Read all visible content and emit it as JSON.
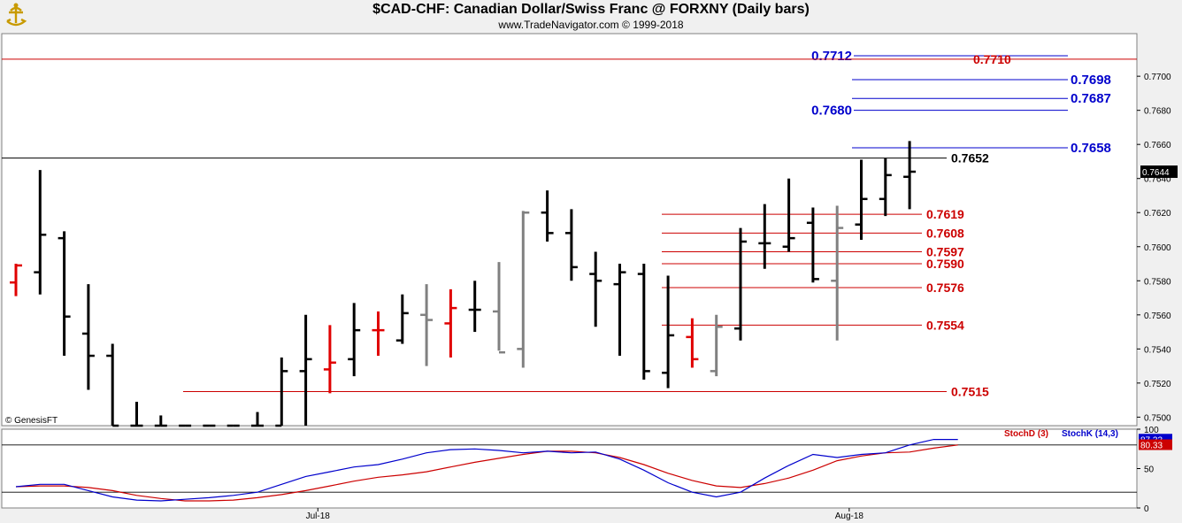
{
  "header": {
    "title": "$CAD-CHF:  Canadian Dollar/Swiss Franc @ FORXNY  (Daily bars)",
    "subtitle": "www.TradeNavigator.com © 1999-2018",
    "copyright": "© GenesisFT"
  },
  "colors": {
    "bg": "#ffffff",
    "frame": "#f0f0f0",
    "bull": "#000000",
    "bear": "#e00000",
    "neutral": "#808080",
    "blue_level": "#0000cc",
    "red_level": "#cc0000",
    "stoch_d": "#cc0000",
    "stoch_k": "#0000cc"
  },
  "chart_data": [
    {
      "type": "ohlc",
      "ylim": [
        0.7495,
        0.7725
      ],
      "y_ticks": [
        "0.7500",
        "0.7520",
        "0.7540",
        "0.7560",
        "0.7580",
        "0.7600",
        "0.7620",
        "0.7640",
        "0.7660",
        "0.7680",
        "0.7700"
      ],
      "x_labels": [
        {
          "label": "Jul-18",
          "bar": 12.5
        },
        {
          "label": "Aug-18",
          "bar": 34.5
        }
      ],
      "last_price": "0.7644",
      "bars": [
        {
          "o": 0.7579,
          "h": 0.759,
          "l": 0.7571,
          "c": 0.7589,
          "color": "bear"
        },
        {
          "o": 0.7585,
          "h": 0.7645,
          "l": 0.7572,
          "c": 0.7607,
          "color": "bull"
        },
        {
          "o": 0.7605,
          "h": 0.7609,
          "l": 0.7536,
          "c": 0.7559,
          "color": "bull"
        },
        {
          "o": 0.7549,
          "h": 0.7578,
          "l": 0.7516,
          "c": 0.7536,
          "color": "bull"
        },
        {
          "o": 0.7536,
          "h": 0.7543,
          "l": 0.7495,
          "c": 0.7495,
          "color": "bull"
        },
        {
          "o": 0.7495,
          "h": 0.7509,
          "l": 0.7495,
          "c": 0.7495,
          "color": "bull"
        },
        {
          "o": 0.7495,
          "h": 0.7501,
          "l": 0.7495,
          "c": 0.7495,
          "color": "bull"
        },
        {
          "o": 0.7495,
          "h": 0.7495,
          "l": 0.7495,
          "c": 0.7495,
          "color": "bull"
        },
        {
          "o": 0.7495,
          "h": 0.7495,
          "l": 0.7495,
          "c": 0.7495,
          "color": "bull"
        },
        {
          "o": 0.7495,
          "h": 0.7495,
          "l": 0.7495,
          "c": 0.7495,
          "color": "bull"
        },
        {
          "o": 0.7495,
          "h": 0.7503,
          "l": 0.7495,
          "c": 0.7495,
          "color": "bull"
        },
        {
          "o": 0.7495,
          "h": 0.7535,
          "l": 0.7495,
          "c": 0.7527,
          "color": "bull"
        },
        {
          "o": 0.7527,
          "h": 0.756,
          "l": 0.7495,
          "c": 0.7534,
          "color": "bull"
        },
        {
          "o": 0.7528,
          "h": 0.7554,
          "l": 0.7514,
          "c": 0.7532,
          "color": "bear"
        },
        {
          "o": 0.7534,
          "h": 0.7567,
          "l": 0.7524,
          "c": 0.7551,
          "color": "bull"
        },
        {
          "o": 0.7551,
          "h": 0.7562,
          "l": 0.7536,
          "c": 0.7551,
          "color": "bear"
        },
        {
          "o": 0.7545,
          "h": 0.7572,
          "l": 0.7543,
          "c": 0.7561,
          "color": "bull"
        },
        {
          "o": 0.756,
          "h": 0.7578,
          "l": 0.753,
          "c": 0.7557,
          "color": "neutral"
        },
        {
          "o": 0.7555,
          "h": 0.7575,
          "l": 0.7535,
          "c": 0.7564,
          "color": "bear"
        },
        {
          "o": 0.7563,
          "h": 0.758,
          "l": 0.755,
          "c": 0.7563,
          "color": "bull"
        },
        {
          "o": 0.7562,
          "h": 0.7591,
          "l": 0.7539,
          "c": 0.7538,
          "color": "neutral"
        },
        {
          "o": 0.754,
          "h": 0.7621,
          "l": 0.7529,
          "c": 0.762,
          "color": "neutral"
        },
        {
          "o": 0.762,
          "h": 0.7633,
          "l": 0.7603,
          "c": 0.7608,
          "color": "bull"
        },
        {
          "o": 0.7608,
          "h": 0.7622,
          "l": 0.758,
          "c": 0.7588,
          "color": "bull"
        },
        {
          "o": 0.7584,
          "h": 0.7597,
          "l": 0.7553,
          "c": 0.758,
          "color": "bull"
        },
        {
          "o": 0.7578,
          "h": 0.759,
          "l": 0.7536,
          "c": 0.7585,
          "color": "bull"
        },
        {
          "o": 0.7584,
          "h": 0.759,
          "l": 0.7522,
          "c": 0.7527,
          "color": "bull"
        },
        {
          "o": 0.7526,
          "h": 0.7583,
          "l": 0.7517,
          "c": 0.7548,
          "color": "bull"
        },
        {
          "o": 0.7547,
          "h": 0.7558,
          "l": 0.7529,
          "c": 0.7534,
          "color": "bear"
        },
        {
          "o": 0.7527,
          "h": 0.756,
          "l": 0.7524,
          "c": 0.7553,
          "color": "neutral"
        },
        {
          "o": 0.7552,
          "h": 0.7611,
          "l": 0.7545,
          "c": 0.7603,
          "color": "bull"
        },
        {
          "o": 0.7602,
          "h": 0.7625,
          "l": 0.7587,
          "c": 0.7602,
          "color": "bull"
        },
        {
          "o": 0.76,
          "h": 0.764,
          "l": 0.7597,
          "c": 0.7605,
          "color": "bull"
        },
        {
          "o": 0.7614,
          "h": 0.7623,
          "l": 0.7579,
          "c": 0.7581,
          "color": "bull"
        },
        {
          "o": 0.758,
          "h": 0.7624,
          "l": 0.7545,
          "c": 0.7611,
          "color": "neutral"
        },
        {
          "o": 0.7613,
          "h": 0.7651,
          "l": 0.7604,
          "c": 0.7628,
          "color": "bull"
        },
        {
          "o": 0.7628,
          "h": 0.7652,
          "l": 0.7618,
          "c": 0.7642,
          "color": "bull"
        },
        {
          "o": 0.7641,
          "h": 0.7662,
          "l": 0.7622,
          "c": 0.7644,
          "color": "bull"
        }
      ],
      "levels": [
        {
          "label": "0.7712",
          "value": 0.7712,
          "color": "blue_level",
          "label_side": "left"
        },
        {
          "label": "0.7710",
          "value": 0.771,
          "color": "red_level",
          "label_side": "inline",
          "full": true
        },
        {
          "label": "0.7698",
          "value": 0.7698,
          "color": "blue_level",
          "label_side": "right"
        },
        {
          "label": "0.7687",
          "value": 0.7687,
          "color": "blue_level",
          "label_side": "right"
        },
        {
          "label": "0.7680",
          "value": 0.768,
          "color": "blue_level",
          "label_side": "left"
        },
        {
          "label": "0.7658",
          "value": 0.7658,
          "color": "blue_level",
          "label_side": "right"
        },
        {
          "label": "0.7652",
          "value": 0.7652,
          "color": "bull",
          "label_side": "right",
          "full": true
        },
        {
          "label": "0.7619",
          "value": 0.7619,
          "color": "red_level",
          "label_side": "right"
        },
        {
          "label": "0.7608",
          "value": 0.7608,
          "color": "red_level",
          "label_side": "right"
        },
        {
          "label": "0.7597",
          "value": 0.7597,
          "color": "red_level",
          "label_side": "right"
        },
        {
          "label": "0.7590",
          "value": 0.759,
          "color": "red_level",
          "label_side": "right"
        },
        {
          "label": "0.7576",
          "value": 0.7576,
          "color": "red_level",
          "label_side": "right"
        },
        {
          "label": "0.7554",
          "value": 0.7554,
          "color": "red_level",
          "label_side": "right"
        },
        {
          "label": "0.7515",
          "value": 0.7515,
          "color": "red_level",
          "label_side": "right"
        }
      ]
    },
    {
      "type": "line",
      "ylim": [
        0,
        100
      ],
      "y_ticks": [
        "0",
        "50",
        "100"
      ],
      "reference_lines": [
        20,
        80
      ],
      "legend": [
        {
          "name": "StochD (3)",
          "color": "stoch_d"
        },
        {
          "name": "StochK (14,3)",
          "color": "stoch_k"
        }
      ],
      "last_values": {
        "d": "80.33",
        "k": "87.33"
      },
      "series": [
        {
          "name": "StochD (3)",
          "values": [
            27,
            28,
            28,
            26,
            22,
            16,
            12,
            9,
            9,
            10,
            13,
            17,
            22,
            28,
            34,
            39,
            42,
            46,
            52,
            58,
            63,
            68,
            72,
            72,
            70,
            64,
            55,
            44,
            35,
            28,
            26,
            31,
            38,
            48,
            60,
            66,
            70,
            71,
            76,
            80
          ]
        },
        {
          "name": "StochK (14,3)",
          "values": [
            27,
            30,
            30,
            22,
            14,
            10,
            9,
            11,
            13,
            16,
            20,
            30,
            40,
            46,
            52,
            55,
            62,
            70,
            74,
            75,
            73,
            70,
            72,
            70,
            71,
            62,
            48,
            32,
            20,
            14,
            20,
            38,
            54,
            68,
            64,
            68,
            70,
            80,
            87,
            87
          ]
        }
      ]
    }
  ]
}
